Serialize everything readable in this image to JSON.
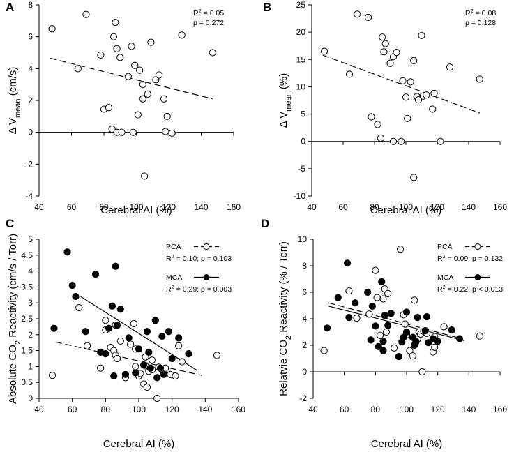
{
  "chart_data": [
    {
      "panel": "A",
      "type": "scatter",
      "xlabel": "Cerebral AI (%)",
      "ylabel_prefix": "Δ V",
      "ylabel_sub": "mean",
      "ylabel_suffix": " (cm/s)",
      "xlim": [
        40,
        160
      ],
      "ylim": [
        -4,
        8
      ],
      "xticks": [
        "40",
        "60",
        "80",
        "100",
        "120",
        "140",
        "160"
      ],
      "yticks": [
        "-4",
        "-2",
        "0",
        "2",
        "4",
        "6",
        "8"
      ],
      "stats": [
        "R2 = 0.05",
        "p = 0.272"
      ],
      "series": [
        {
          "name": "data",
          "fill": "open",
          "x": [
            48,
            64,
            69,
            78,
            80,
            83,
            85,
            86,
            87,
            88,
            88,
            90,
            91,
            95,
            97,
            98,
            99,
            101,
            102,
            104,
            104,
            105,
            107,
            109,
            112,
            114,
            117,
            118,
            119,
            122,
            128,
            147
          ],
          "y": [
            6.5,
            4.0,
            7.4,
            4.85,
            1.45,
            1.55,
            0.2,
            6.0,
            6.9,
            5.25,
            0.0,
            4.7,
            0.0,
            3.5,
            5.4,
            0.0,
            4.2,
            1.1,
            3.9,
            2.1,
            3.0,
            -2.75,
            2.4,
            5.65,
            3.3,
            3.6,
            2.1,
            0.05,
            1.0,
            -0.05,
            6.1,
            5.0
          ]
        }
      ],
      "fits": [
        {
          "x": [
            47,
            147
          ],
          "y": [
            4.65,
            2.1
          ],
          "style": "dashed"
        }
      ]
    },
    {
      "panel": "B",
      "type": "scatter",
      "xlabel": "Cerebral AI (%)",
      "ylabel_prefix": "Δ V",
      "ylabel_sub": "mean",
      "ylabel_suffix": " (%)",
      "xlim": [
        40,
        160
      ],
      "ylim": [
        -10,
        25
      ],
      "xticks": [
        "40",
        "60",
        "80",
        "100",
        "120",
        "140",
        "160"
      ],
      "yticks": [
        "-10",
        "-5",
        "0",
        "5",
        "10",
        "15",
        "20",
        "25"
      ],
      "stats": [
        "R2 = 0.08",
        "p = 0.128"
      ],
      "series": [
        {
          "name": "data",
          "fill": "open",
          "x": [
            48,
            64,
            69,
            76,
            78,
            82,
            84,
            85,
            86,
            87,
            90,
            92,
            92,
            94,
            97,
            98,
            100,
            101,
            103,
            105,
            105,
            107,
            108,
            110,
            111,
            113,
            117,
            118,
            122,
            128,
            147
          ],
          "y": [
            16.5,
            12.3,
            23.3,
            22.7,
            4.5,
            3.1,
            0.6,
            19.1,
            16.4,
            17.9,
            14.3,
            0.0,
            15.5,
            16.3,
            0.0,
            11.1,
            8.1,
            4.2,
            10.9,
            14.8,
            -6.6,
            8.2,
            7.6,
            19.4,
            8.3,
            8.5,
            5.9,
            8.8,
            0.0,
            13.6,
            11.4
          ]
        }
      ],
      "fits": [
        {
          "x": [
            47,
            147
          ],
          "y": [
            15.8,
            5.2
          ],
          "style": "dashed"
        }
      ]
    },
    {
      "panel": "C",
      "type": "scatter",
      "xlabel": "Cerebral AI (%)",
      "ylabel_prefix": "Absolute CO",
      "ylabel_sub": "2",
      "ylabel_suffix": " Reactivity (cm/s / Torr)",
      "xlim": [
        40,
        160
      ],
      "ylim": [
        0,
        5
      ],
      "xticks": [
        "40",
        "60",
        "80",
        "100",
        "120",
        "140",
        "160"
      ],
      "yticks": [
        "0",
        "0.5",
        "1",
        "1.5",
        "2",
        "2.5",
        "3",
        "3.5",
        "4",
        "4.5",
        "5"
      ],
      "legend": [
        {
          "label": "PCA",
          "stat": "R2 = 0.10; p = 0.103",
          "fill": "open",
          "line": "dashed"
        },
        {
          "label": "MCA",
          "stat": "R2 = 0.29; p = 0.003",
          "fill": "filled",
          "line": "solid"
        }
      ],
      "series": [
        {
          "name": "PCA",
          "fill": "open",
          "x": [
            48,
            64,
            69,
            77,
            80,
            80,
            83,
            85,
            86,
            86,
            87,
            89,
            92,
            95,
            97,
            98,
            98,
            100,
            101,
            103,
            104,
            104,
            105,
            106,
            108,
            108,
            111,
            112,
            114,
            116,
            119,
            122,
            124,
            126,
            147
          ],
          "y": [
            0.72,
            2.85,
            1.65,
            0.95,
            2.45,
            2.15,
            1.6,
            1.5,
            1.35,
            2.3,
            1.25,
            1.8,
            0.65,
            1.7,
            2.35,
            1.0,
            1.55,
            0.7,
            0.78,
            0.45,
            1.02,
            1.3,
            0.35,
            0.85,
            0.9,
            1.2,
            0.0,
            0.98,
            0.9,
            0.95,
            0.75,
            0.7,
            1.65,
            1.15,
            1.35
          ]
        },
        {
          "name": "MCA",
          "fill": "filled",
          "x": [
            49,
            57,
            60,
            62,
            68,
            74,
            77,
            80,
            82,
            84,
            85,
            86,
            87,
            89,
            92,
            94,
            98,
            100,
            103,
            105,
            106,
            107,
            110,
            111,
            113,
            114,
            115,
            118,
            120,
            124,
            130
          ],
          "y": [
            2.2,
            4.6,
            3.55,
            3.2,
            2.1,
            3.9,
            1.45,
            1.4,
            2.2,
            2.9,
            0.7,
            4.15,
            2.3,
            2.8,
            0.75,
            1.9,
            0.8,
            1.55,
            1.05,
            2.1,
            1.45,
            0.95,
            2.45,
            0.65,
            0.95,
            1.95,
            0.75,
            2.1,
            1.25,
            1.9,
            1.4
          ]
        }
      ],
      "fits": [
        {
          "x": [
            50,
            138
          ],
          "y": [
            1.77,
            0.72
          ],
          "style": "dashed"
        },
        {
          "x": [
            65,
            135
          ],
          "y": [
            3.2,
            0.88
          ],
          "style": "solid"
        }
      ]
    },
    {
      "panel": "D",
      "type": "scatter",
      "xlabel": "Cerebral AI (%)",
      "ylabel_prefix": "Relatvie CO",
      "ylabel_sub": "2",
      "ylabel_suffix": " Reactivity (% / Torr)",
      "xlim": [
        40,
        160
      ],
      "ylim": [
        -2,
        10
      ],
      "xticks": [
        "40",
        "60",
        "80",
        "100",
        "120",
        "140",
        "160"
      ],
      "yticks": [
        "-2",
        "0",
        "2",
        "4",
        "6",
        "8",
        "10"
      ],
      "legend": [
        {
          "label": "PCA",
          "stat": "R2 = 0.09; p = 0.132",
          "fill": "open",
          "line": "dashed"
        },
        {
          "label": "MCA",
          "stat": "R2 = 0.22; p < 0.013",
          "fill": "filled",
          "line": "solid"
        }
      ],
      "series": [
        {
          "name": "PCA",
          "fill": "open",
          "x": [
            47,
            63,
            68,
            76,
            80,
            81,
            83,
            85,
            86,
            87,
            88,
            92,
            96,
            98,
            99,
            100,
            102,
            104,
            105,
            106,
            107,
            108,
            109,
            110,
            111,
            113,
            117,
            118,
            118,
            124,
            147
          ],
          "y": [
            1.6,
            6.1,
            4.05,
            4.35,
            7.65,
            5.6,
            2.75,
            5.5,
            6.25,
            3.0,
            5.9,
            1.8,
            9.25,
            4.3,
            3.6,
            2.8,
            1.6,
            1.2,
            5.4,
            2.25,
            2.45,
            3.0,
            2.85,
            0.0,
            3.05,
            2.9,
            1.5,
            1.85,
            2.65,
            3.4,
            2.7
          ]
        },
        {
          "name": "MCA",
          "fill": "filled",
          "x": [
            49,
            56,
            62,
            63,
            67,
            75,
            77,
            78,
            80,
            82,
            84,
            85,
            85,
            86,
            88,
            90,
            95,
            97,
            98,
            100,
            100,
            104,
            105,
            106,
            107,
            112,
            113,
            114,
            117,
            120,
            129,
            134
          ],
          "y": [
            3.3,
            5.6,
            8.2,
            4.1,
            5.2,
            6.0,
            2.4,
            4.95,
            3.45,
            1.9,
            6.8,
            2.3,
            1.6,
            4.25,
            3.5,
            4.4,
            1.15,
            2.25,
            2.6,
            3.0,
            4.5,
            2.6,
            2.0,
            2.3,
            4.1,
            3.1,
            4.15,
            2.2,
            2.5,
            2.3,
            3.15,
            2.5
          ]
        }
      ],
      "fits": [
        {
          "x": [
            50,
            132
          ],
          "y": [
            5.2,
            2.6
          ],
          "style": "dashed"
        },
        {
          "x": [
            50,
            137
          ],
          "y": [
            4.95,
            2.35
          ],
          "style": "solid"
        }
      ]
    }
  ]
}
